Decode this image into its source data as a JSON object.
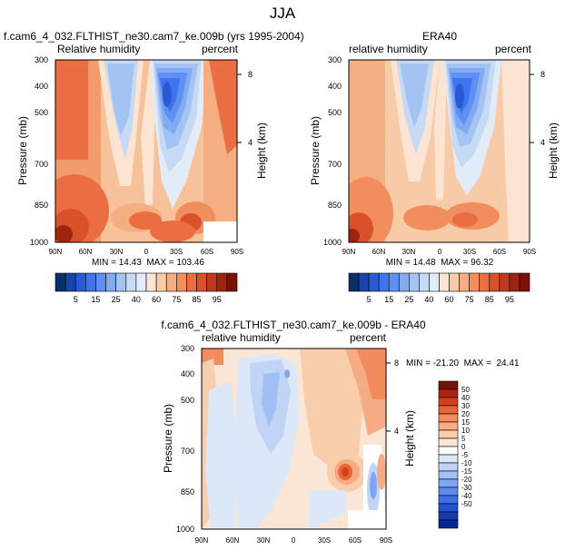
{
  "figure": {
    "title": "JJA"
  },
  "chart_data": [
    {
      "type": "heatmap",
      "panel_title": "f.cam6_4_032.FLTHIST_ne30.cam7_ke.009b (yrs 1995-2004)",
      "left_string": "Relative humidity",
      "right_string": "percent",
      "ylabel": "Pressure (mb)",
      "ylabel_right": "Height (km)",
      "x_ticks": [
        "90N",
        "60N",
        "30N",
        "0",
        "30S",
        "60S",
        "90S"
      ],
      "y_ticks": [
        "300",
        "400",
        "500",
        "700",
        "850",
        "1000"
      ],
      "y_ticks_right": [
        "8",
        "4"
      ],
      "min_max": "MIN = 14.43  MAX = 103.46",
      "stats": {
        "min": 14.43,
        "max": 103.46
      },
      "xlim": [
        90,
        -90
      ],
      "ylim": [
        1000,
        300
      ]
    },
    {
      "type": "heatmap",
      "panel_title": "ERA40",
      "left_string": "relative humidity",
      "right_string": "percent",
      "ylabel": "Pressure (mb)",
      "ylabel_right": "Height (km)",
      "x_ticks": [
        "90N",
        "60N",
        "30N",
        "0",
        "30S",
        "60S",
        "90S"
      ],
      "y_ticks": [
        "300",
        "400",
        "500",
        "700",
        "850",
        "1000"
      ],
      "y_ticks_right": [
        "8",
        "4"
      ],
      "min_max": "MIN = 14.48  MAX = 96.32",
      "stats": {
        "min": 14.48,
        "max": 96.32
      },
      "xlim": [
        90,
        -90
      ],
      "ylim": [
        1000,
        300
      ]
    },
    {
      "type": "heatmap",
      "panel_title": "f.cam6_4_032.FLTHIST_ne30.cam7_ke.009b - ERA40",
      "left_string": "relative humidity",
      "right_string": "percent",
      "ylabel": "Pressure (mb)",
      "ylabel_right": "Height (km)",
      "x_ticks": [
        "90N",
        "60N",
        "30N",
        "0",
        "30S",
        "60S",
        "90S"
      ],
      "y_ticks": [
        "300",
        "400",
        "500",
        "700",
        "850",
        "1000"
      ],
      "y_ticks_right": [
        "8",
        "4"
      ],
      "min_max": "MIN = -21.20  MAX =  24.41",
      "stats": {
        "min": -21.2,
        "max": 24.41
      },
      "xlim": [
        90,
        -90
      ],
      "ylim": [
        1000,
        300
      ]
    }
  ],
  "colorbars": {
    "abs": {
      "labels": [
        "5",
        "15",
        "25",
        "40",
        "60",
        "75",
        "85",
        "95"
      ],
      "colors": [
        "#08306b",
        "#1843a8",
        "#2a5bd7",
        "#3f74ee",
        "#5f8ff2",
        "#80aaf2",
        "#a3c3f3",
        "#c6daf5",
        "#e2ecf8",
        "#fbe4d2",
        "#f8cba8",
        "#f5ae82",
        "#f28e5e",
        "#ea6e42",
        "#d9512b",
        "#c0391d",
        "#9c2410",
        "#7a1208"
      ]
    },
    "diff": {
      "labels": [
        "50",
        "40",
        "30",
        "20",
        "15",
        "10",
        "5",
        "0",
        "-5",
        "-10",
        "-15",
        "-20",
        "-30",
        "-40",
        "-50"
      ],
      "colors": [
        "#7a1208",
        "#b1250d",
        "#d4401f",
        "#e96535",
        "#f28c5c",
        "#f5ac85",
        "#f8cdac",
        "#fbe6d6",
        "#ffffff",
        "#dce8f8",
        "#c0d5f5",
        "#a0bff4",
        "#7fa6f2",
        "#5c8cf0",
        "#3d6fe8",
        "#2752d2",
        "#163ab0",
        "#0a2690"
      ]
    }
  }
}
